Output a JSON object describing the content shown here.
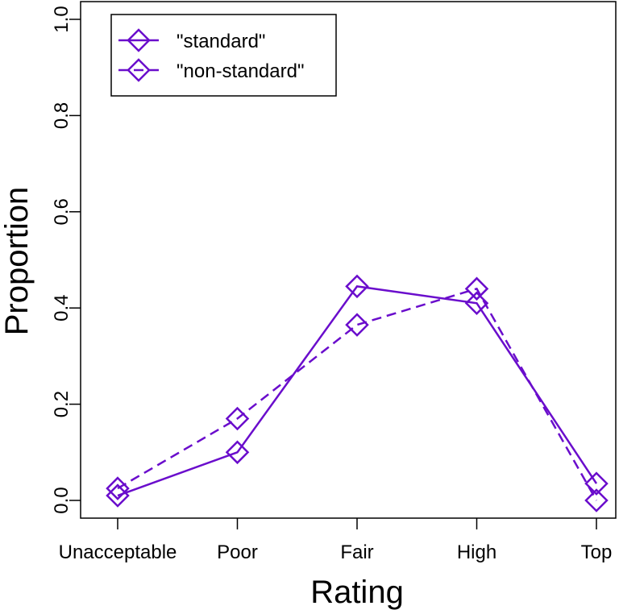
{
  "chart_data": {
    "type": "line",
    "categories": [
      "Unacceptable",
      "Poor",
      "Fair",
      "High",
      "Top"
    ],
    "series": [
      {
        "name": "\"standard\"",
        "values": [
          0.01,
          0.1,
          0.445,
          0.41,
          0.035
        ],
        "line_style": "solid",
        "marker": "diamond"
      },
      {
        "name": "\"non-standard\"",
        "values": [
          0.025,
          0.17,
          0.365,
          0.44,
          0.0
        ],
        "line_style": "dashed",
        "marker": "diamond"
      }
    ],
    "xlabel": "Rating",
    "ylabel": "Proportion",
    "ylim": [
      0,
      1
    ],
    "yticks": [
      "0.0",
      "0.2",
      "0.4",
      "0.6",
      "0.8",
      "1.0"
    ],
    "color": "#6A0DCC",
    "legend_position": "top-left",
    "grid": false
  }
}
